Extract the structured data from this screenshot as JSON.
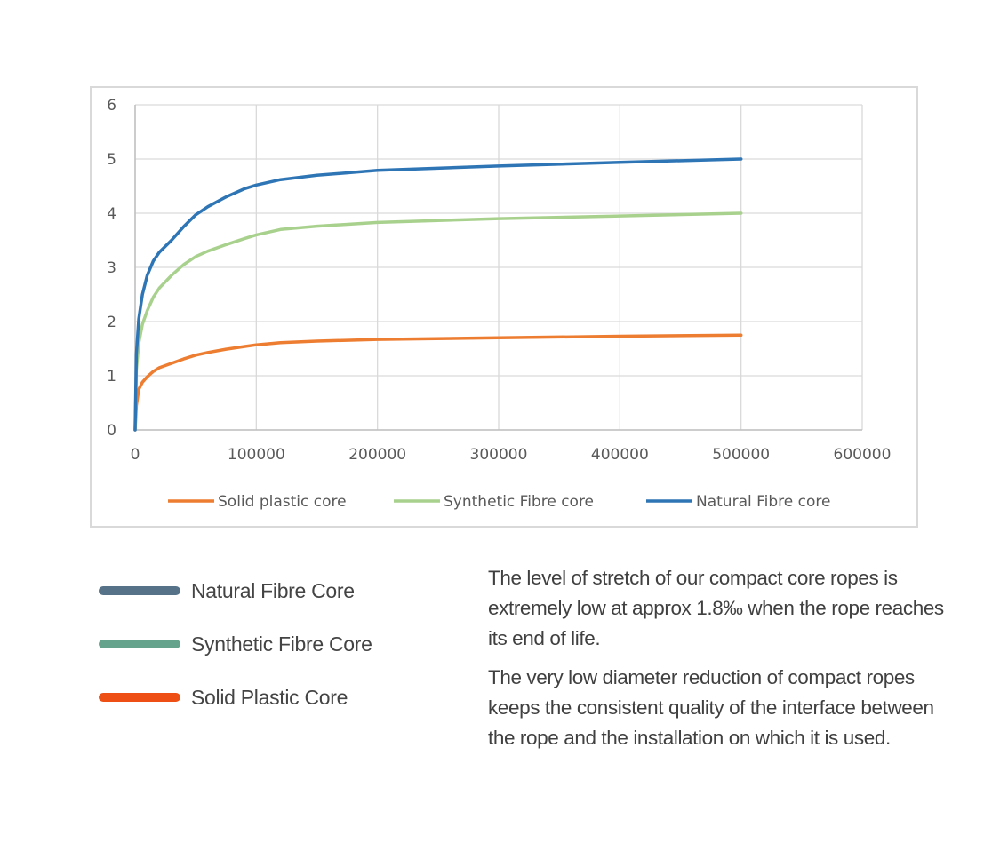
{
  "chart_data": {
    "type": "line",
    "title": "",
    "xlabel": "",
    "ylabel": "",
    "xlim": [
      0,
      600000
    ],
    "ylim": [
      0,
      6
    ],
    "x_ticks": [
      0,
      100000,
      200000,
      300000,
      400000,
      500000,
      600000
    ],
    "y_ticks": [
      0,
      1,
      2,
      3,
      4,
      5,
      6
    ],
    "grid": true,
    "legend_position": "bottom",
    "series": [
      {
        "name": "Solid plastic core",
        "color": "#ed7d31",
        "points": [
          [
            0,
            0
          ],
          [
            1000,
            0.45
          ],
          [
            3000,
            0.75
          ],
          [
            6000,
            0.88
          ],
          [
            10000,
            0.98
          ],
          [
            15000,
            1.08
          ],
          [
            20000,
            1.15
          ],
          [
            30000,
            1.23
          ],
          [
            40000,
            1.31
          ],
          [
            50000,
            1.38
          ],
          [
            60000,
            1.43
          ],
          [
            75000,
            1.49
          ],
          [
            90000,
            1.54
          ],
          [
            100000,
            1.57
          ],
          [
            120000,
            1.61
          ],
          [
            150000,
            1.64
          ],
          [
            200000,
            1.67
          ],
          [
            300000,
            1.7
          ],
          [
            400000,
            1.73
          ],
          [
            500000,
            1.75
          ]
        ]
      },
      {
        "name": "Synthetic Fibre core",
        "color": "#a9d18e",
        "points": [
          [
            0,
            0
          ],
          [
            1000,
            1.1
          ],
          [
            3000,
            1.6
          ],
          [
            6000,
            1.95
          ],
          [
            10000,
            2.2
          ],
          [
            15000,
            2.45
          ],
          [
            20000,
            2.62
          ],
          [
            30000,
            2.85
          ],
          [
            40000,
            3.05
          ],
          [
            50000,
            3.2
          ],
          [
            60000,
            3.3
          ],
          [
            75000,
            3.42
          ],
          [
            90000,
            3.53
          ],
          [
            100000,
            3.6
          ],
          [
            120000,
            3.7
          ],
          [
            150000,
            3.76
          ],
          [
            200000,
            3.83
          ],
          [
            300000,
            3.9
          ],
          [
            400000,
            3.95
          ],
          [
            500000,
            4.0
          ]
        ]
      },
      {
        "name": "Natural Fibre core",
        "color": "#2e75b6",
        "points": [
          [
            0,
            0
          ],
          [
            1000,
            1.4
          ],
          [
            3000,
            2.05
          ],
          [
            6000,
            2.5
          ],
          [
            10000,
            2.85
          ],
          [
            15000,
            3.12
          ],
          [
            20000,
            3.28
          ],
          [
            30000,
            3.5
          ],
          [
            40000,
            3.75
          ],
          [
            50000,
            3.97
          ],
          [
            60000,
            4.12
          ],
          [
            75000,
            4.3
          ],
          [
            90000,
            4.45
          ],
          [
            100000,
            4.52
          ],
          [
            120000,
            4.62
          ],
          [
            150000,
            4.7
          ],
          [
            200000,
            4.79
          ],
          [
            300000,
            4.87
          ],
          [
            400000,
            4.94
          ],
          [
            500000,
            5.0
          ]
        ]
      }
    ]
  },
  "key": [
    {
      "label": "Natural Fibre Core",
      "color": "#557289"
    },
    {
      "label": "Synthetic Fibre Core",
      "color": "#66a38c"
    },
    {
      "label": "Solid Plastic Core",
      "color": "#ee4f14"
    }
  ],
  "description": {
    "para1": "The level of stretch of our compact core ropes is extremely low at approx 1.8‰ when the rope reaches its end of life.",
    "para2": "The very low diameter reduction of compact ropes keeps the consistent quality of the interface between the rope and the installation on which it is used."
  }
}
